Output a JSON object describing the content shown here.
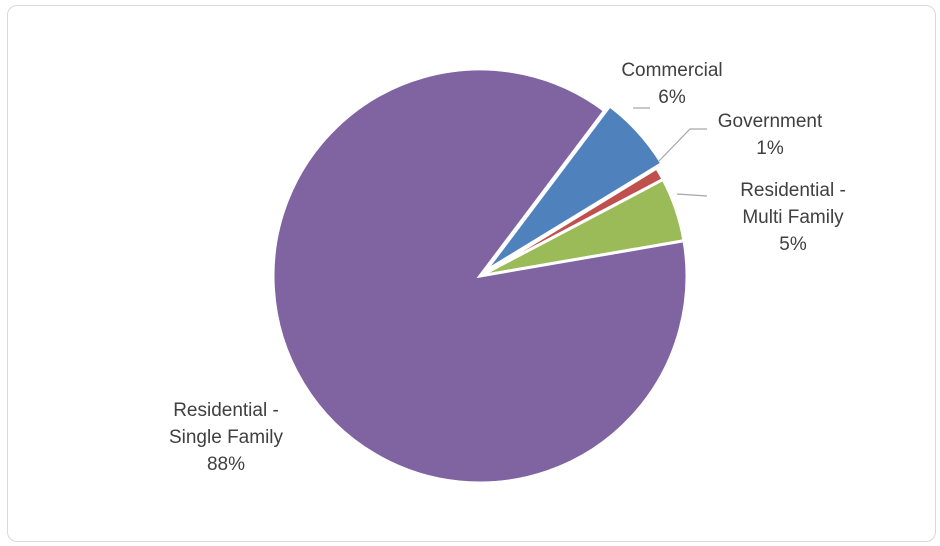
{
  "chart_data": {
    "type": "pie",
    "title": "",
    "legend": "none",
    "slices": [
      {
        "name": "Commercial",
        "label_lines": [
          "Commercial"
        ],
        "value": 6,
        "label": "6%",
        "color": "#4F81BD"
      },
      {
        "name": "Government",
        "label_lines": [
          "Government"
        ],
        "value": 1,
        "label": "1%",
        "color": "#C0504D"
      },
      {
        "name": "Residential - Multi Family",
        "label_lines": [
          "Residential -",
          "Multi Family"
        ],
        "value": 5,
        "label": "5%",
        "color": "#9BBB59"
      },
      {
        "name": "Residential - Single Family",
        "label_lines": [
          "Residential -",
          "Single Family"
        ],
        "value": 88,
        "label": "88%",
        "color": "#8064A2"
      }
    ]
  }
}
